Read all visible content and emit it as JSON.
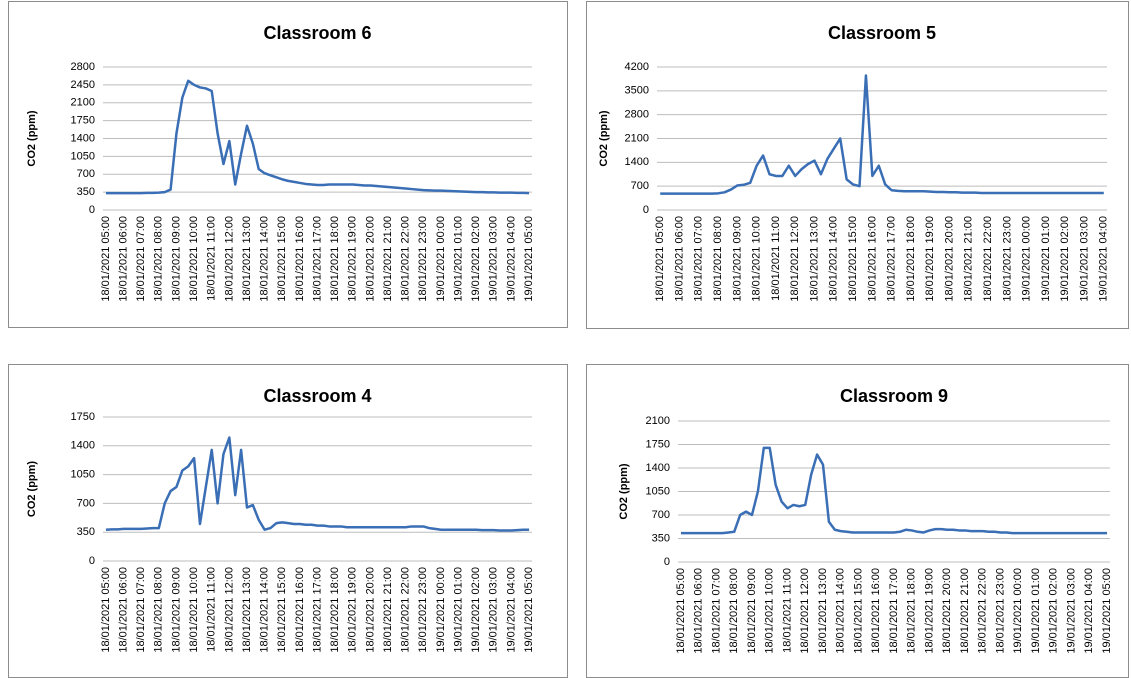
{
  "chart_data": [
    {
      "type": "line",
      "title": "Classroom 6",
      "y_label": "CO2 (ppm)",
      "color": "#3a6eb5",
      "grid": true,
      "ylim": [
        0,
        2800
      ],
      "yticks": [
        0,
        350,
        700,
        1050,
        1400,
        1750,
        2100,
        2450,
        2800
      ],
      "categories": [
        "18/01/2021 05:00",
        null,
        null,
        "18/01/2021 06:00",
        null,
        null,
        "18/01/2021 07:00",
        null,
        null,
        "18/01/2021 08:00",
        null,
        null,
        "18/01/2021 09:00",
        null,
        null,
        "18/01/2021 10:00",
        null,
        null,
        "18/01/2021 11:00",
        null,
        null,
        "18/01/2021 12:00",
        null,
        null,
        "18/01/2021 13:00",
        null,
        null,
        "18/01/2021 14:00",
        null,
        null,
        "18/01/2021 15:00",
        null,
        null,
        "18/01/2021 16:00",
        null,
        null,
        "18/01/2021 17:00",
        null,
        null,
        "18/01/2021 18:00",
        null,
        null,
        "18/01/2021 19:00",
        null,
        null,
        "18/01/2021 20:00",
        null,
        null,
        "18/01/2021 21:00",
        null,
        null,
        "18/01/2021 22:00",
        null,
        null,
        "18/01/2021 23:00",
        null,
        null,
        "19/01/2021 00:00",
        null,
        null,
        "19/01/2021 01:00",
        null,
        null,
        "19/01/2021 02:00",
        null,
        null,
        "19/01/2021 03:00",
        null,
        null,
        "19/01/2021 04:00",
        null,
        null,
        "19/01/2021 05:00"
      ],
      "values": [
        330,
        330,
        330,
        330,
        330,
        330,
        330,
        335,
        335,
        340,
        350,
        400,
        1500,
        2200,
        2530,
        2450,
        2400,
        2380,
        2330,
        1500,
        900,
        1350,
        500,
        1100,
        1650,
        1300,
        800,
        720,
        680,
        640,
        600,
        570,
        550,
        530,
        510,
        500,
        490,
        490,
        500,
        500,
        500,
        500,
        500,
        490,
        480,
        480,
        470,
        460,
        450,
        440,
        430,
        420,
        410,
        400,
        390,
        385,
        380,
        380,
        375,
        370,
        365,
        360,
        355,
        350,
        350,
        345,
        345,
        340,
        340,
        340,
        335,
        335,
        330
      ]
    },
    {
      "type": "line",
      "title": "Classroom 5",
      "y_label": "CO2 (ppm)",
      "color": "#3a6eb5",
      "grid": true,
      "ylim": [
        0,
        4200
      ],
      "yticks": [
        0,
        700,
        1400,
        2100,
        2800,
        3500,
        4200
      ],
      "categories": [
        "18/01/2021 05:00",
        null,
        null,
        "18/01/2021 06:00",
        null,
        null,
        "18/01/2021 07:00",
        null,
        null,
        "18/01/2021 08:00",
        null,
        null,
        "18/01/2021 09:00",
        null,
        null,
        "18/01/2021 10:00",
        null,
        null,
        "18/01/2021 11:00",
        null,
        null,
        "18/01/2021 12:00",
        null,
        null,
        "18/01/2021 13:00",
        null,
        null,
        "18/01/2021 14:00",
        null,
        null,
        "18/01/2021 15:00",
        null,
        null,
        "18/01/2021 16:00",
        null,
        null,
        "18/01/2021 17:00",
        null,
        null,
        "18/01/2021 18:00",
        null,
        null,
        "18/01/2021 19:00",
        null,
        null,
        "18/01/2021 20:00",
        null,
        null,
        "18/01/2021 21:00",
        null,
        null,
        "18/01/2021 22:00",
        null,
        null,
        "18/01/2021 23:00",
        null,
        null,
        "19/01/2021 00:00",
        null,
        null,
        "19/01/2021 01:00",
        null,
        null,
        "19/01/2021 02:00",
        null,
        null,
        "19/01/2021 03:00",
        null,
        null,
        "19/01/2021 04:00"
      ],
      "values": [
        480,
        480,
        480,
        480,
        480,
        480,
        480,
        480,
        480,
        490,
        520,
        600,
        720,
        740,
        800,
        1300,
        1600,
        1050,
        1000,
        1000,
        1300,
        1000,
        1200,
        1350,
        1450,
        1050,
        1500,
        1800,
        2100,
        900,
        750,
        700,
        3950,
        1000,
        1300,
        750,
        580,
        560,
        550,
        550,
        550,
        550,
        540,
        530,
        530,
        520,
        520,
        510,
        510,
        510,
        500,
        500,
        500,
        500,
        500,
        500,
        500,
        500,
        500,
        500,
        500,
        500,
        500,
        500,
        500,
        500,
        500,
        500,
        500,
        500
      ]
    },
    {
      "type": "line",
      "title": "Classroom 4",
      "y_label": "CO2 (ppm)",
      "color": "#3a6eb5",
      "grid": true,
      "ylim": [
        0,
        1750
      ],
      "yticks": [
        0,
        350,
        700,
        1050,
        1400,
        1750
      ],
      "categories": [
        "18/01/2021 05:00",
        null,
        null,
        "18/01/2021 06:00",
        null,
        null,
        "18/01/2021 07:00",
        null,
        null,
        "18/01/2021 08:00",
        null,
        null,
        "18/01/2021 09:00",
        null,
        null,
        "18/01/2021 10:00",
        null,
        null,
        "18/01/2021 11:00",
        null,
        null,
        "18/01/2021 12:00",
        null,
        null,
        "18/01/2021 13:00",
        null,
        null,
        "18/01/2021 14:00",
        null,
        null,
        "18/01/2021 15:00",
        null,
        null,
        "18/01/2021 16:00",
        null,
        null,
        "18/01/2021 17:00",
        null,
        null,
        "18/01/2021 18:00",
        null,
        null,
        "18/01/2021 19:00",
        null,
        null,
        "18/01/2021 20:00",
        null,
        null,
        "18/01/2021 21:00",
        null,
        null,
        "18/01/2021 22:00",
        null,
        null,
        "18/01/2021 23:00",
        null,
        null,
        "19/01/2021 00:00",
        null,
        null,
        "19/01/2021 01:00",
        null,
        null,
        "19/01/2021 02:00",
        null,
        null,
        "19/01/2021 03:00",
        null,
        null,
        "19/01/2021 04:00",
        null,
        null,
        "19/01/2021 05:00"
      ],
      "values": [
        380,
        385,
        385,
        390,
        390,
        390,
        390,
        395,
        400,
        400,
        700,
        850,
        900,
        1100,
        1150,
        1250,
        450,
        900,
        1350,
        700,
        1300,
        1500,
        800,
        1350,
        650,
        680,
        500,
        380,
        400,
        460,
        470,
        460,
        450,
        450,
        440,
        440,
        430,
        430,
        420,
        420,
        420,
        410,
        410,
        410,
        410,
        410,
        410,
        410,
        410,
        410,
        410,
        410,
        420,
        420,
        420,
        400,
        390,
        380,
        380,
        380,
        380,
        380,
        380,
        380,
        375,
        375,
        375,
        370,
        370,
        370,
        375,
        380,
        380
      ]
    },
    {
      "type": "line",
      "title": "Classroom 9",
      "y_label": "CO2 (ppm)",
      "color": "#3a6eb5",
      "grid": true,
      "ylim": [
        0,
        2100
      ],
      "yticks": [
        0,
        350,
        700,
        1050,
        1400,
        1750,
        2100
      ],
      "categories": [
        "18/01/2021 05:00",
        null,
        null,
        "18/01/2021 06:00",
        null,
        null,
        "18/01/2021 07:00",
        null,
        null,
        "18/01/2021 08:00",
        null,
        null,
        "18/01/2021 09:00",
        null,
        null,
        "18/01/2021 10:00",
        null,
        null,
        "18/01/2021 11:00",
        null,
        null,
        "18/01/2021 12:00",
        null,
        null,
        "18/01/2021 13:00",
        null,
        null,
        "18/01/2021 14:00",
        null,
        null,
        "18/01/2021 15:00",
        null,
        null,
        "18/01/2021 16:00",
        null,
        null,
        "18/01/2021 17:00",
        null,
        null,
        "18/01/2021 18:00",
        null,
        null,
        "18/01/2021 19:00",
        null,
        null,
        "18/01/2021 20:00",
        null,
        null,
        "18/01/2021 21:00",
        null,
        null,
        "18/01/2021 22:00",
        null,
        null,
        "18/01/2021 23:00",
        null,
        null,
        "19/01/2021 00:00",
        null,
        null,
        "19/01/2021 01:00",
        null,
        null,
        "19/01/2021 02:00",
        null,
        null,
        "19/01/2021 03:00",
        null,
        null,
        "19/01/2021 04:00",
        null,
        null,
        "19/01/2021 05:00"
      ],
      "values": [
        430,
        430,
        430,
        430,
        430,
        430,
        430,
        430,
        440,
        450,
        700,
        750,
        700,
        1050,
        1700,
        1700,
        1150,
        900,
        800,
        850,
        830,
        850,
        1300,
        1600,
        1450,
        600,
        480,
        460,
        450,
        440,
        440,
        440,
        440,
        440,
        440,
        440,
        440,
        450,
        480,
        470,
        450,
        440,
        470,
        490,
        490,
        480,
        480,
        470,
        470,
        460,
        460,
        460,
        450,
        450,
        440,
        440,
        430,
        430,
        430,
        430,
        430,
        430,
        430,
        430,
        430,
        430,
        430,
        430,
        430,
        430,
        430,
        430,
        430
      ]
    }
  ]
}
